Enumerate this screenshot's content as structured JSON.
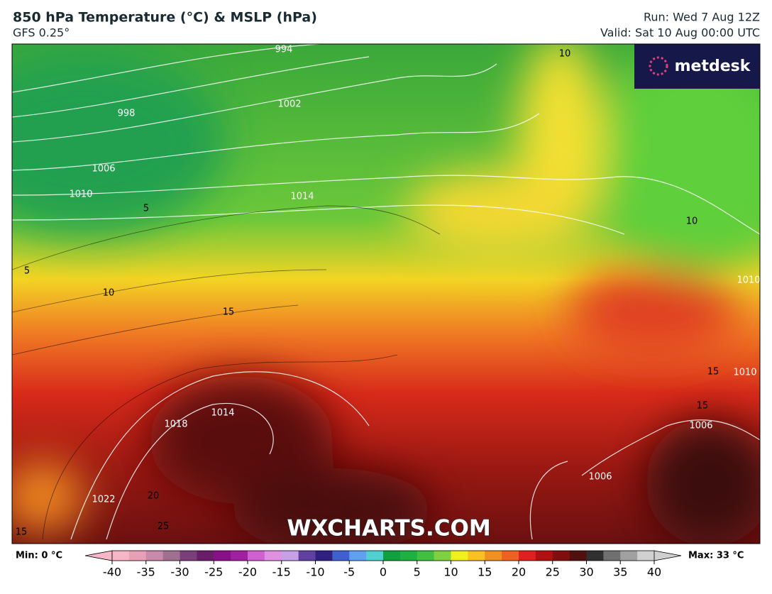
{
  "header": {
    "title": "850 hPa Temperature (°C) & MSLP (hPa)",
    "subtitle": "GFS 0.25°",
    "run": "Run: Wed 7 Aug 12Z",
    "valid": "Valid: Sat 10 Aug 00:00 UTC"
  },
  "logo": "metdesk",
  "watermark": "WXCHARTS.COM",
  "isobar_labels": [
    994,
    998,
    1002,
    1006,
    1010,
    1014,
    1018,
    1022,
    1014,
    1006,
    1010,
    1010,
    1006
  ],
  "isotherm_labels": [
    5,
    10,
    15,
    20,
    25,
    10,
    10,
    15,
    15,
    5,
    15
  ],
  "colorbar": {
    "min_label": "Min: 0 °C",
    "max_label": "Max: 33 °C",
    "ticks": [
      -40,
      -35,
      -30,
      -25,
      -20,
      -15,
      -10,
      -5,
      0,
      5,
      10,
      15,
      20,
      25,
      30,
      35,
      40
    ],
    "colors": [
      "#f7b6c8",
      "#e8a0b8",
      "#c88aa8",
      "#a07090",
      "#7a3e7a",
      "#6a1e6a",
      "#8a108a",
      "#a020a0",
      "#d060d0",
      "#e090e0",
      "#c8a0e8",
      "#6040a0",
      "#302080",
      "#4060d0",
      "#60a0f0",
      "#50d0d0",
      "#10a040",
      "#20b040",
      "#40c040",
      "#80d040",
      "#f0f020",
      "#f8c020",
      "#f09020",
      "#f06020",
      "#e02020",
      "#b01010",
      "#801010",
      "#501010",
      "#303030",
      "#707070",
      "#a0a0a0",
      "#d0d0d0"
    ]
  }
}
